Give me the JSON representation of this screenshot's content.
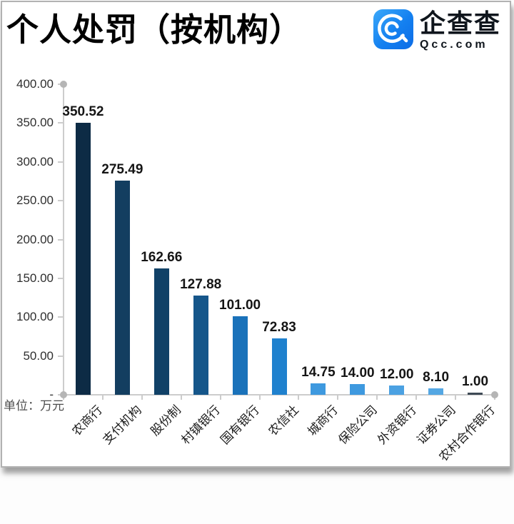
{
  "header": {
    "title": "个人处罚（按机构）",
    "logo": {
      "name": "企查查",
      "domain": "Qcc.com",
      "icon": "qcc-spiral-icon",
      "icon_gradient_top": "#3BA8F9",
      "icon_gradient_bottom": "#0D6CE6",
      "text_color": "#10161d"
    }
  },
  "unit_label": "单位：万元",
  "chart_data": {
    "type": "bar",
    "title": "个人处罚（按机构）",
    "unit": "万元",
    "categories": [
      "农商行",
      "支付机构",
      "股份制",
      "村镇银行",
      "国有银行",
      "农信社",
      "城商行",
      "保险公司",
      "外资银行",
      "证券公司",
      "农村合作银行"
    ],
    "values": [
      350.52,
      275.49,
      162.66,
      127.88,
      101.0,
      72.83,
      14.75,
      14.0,
      12.0,
      8.1,
      1.0
    ],
    "value_labels": [
      "350.52",
      "275.49",
      "162.66",
      "127.88",
      "101.00",
      "72.83",
      "14.75",
      "14.00",
      "12.00",
      "8.10",
      "1.00"
    ],
    "bar_colors": [
      "#0D2B45",
      "#133E60",
      "#114167",
      "#15568A",
      "#1A72BA",
      "#1F81CE",
      "#3E99DF",
      "#3E99DF",
      "#4BA1E2",
      "#54A7E3",
      "#3E4A55"
    ],
    "ylim": [
      0,
      400
    ],
    "ytick_step": 50,
    "yticks": [
      "400.00",
      "350.00",
      "300.00",
      "250.00",
      "200.00",
      "150.00",
      "100.00",
      "50.00",
      "-"
    ],
    "grid": false,
    "legend": "none",
    "axis_color": "#cccccc",
    "endcap_color": "#b5b5b5"
  }
}
